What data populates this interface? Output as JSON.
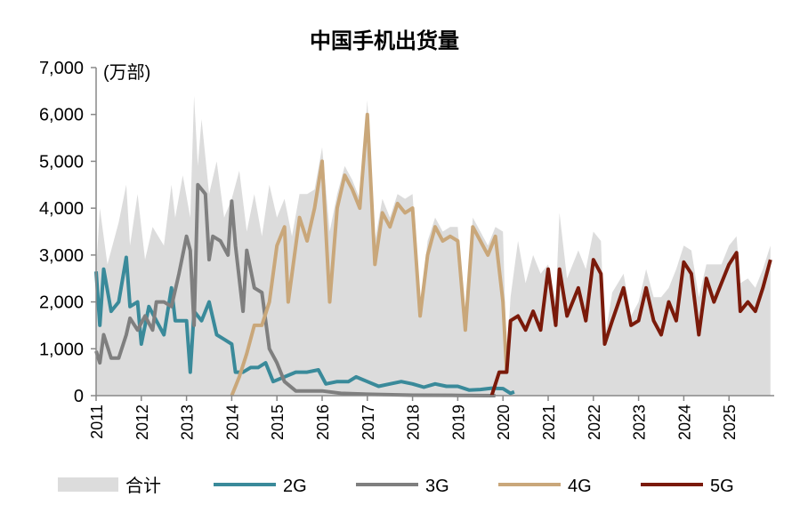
{
  "chart_data": {
    "type": "line",
    "title": "中国手机出货量",
    "unit_label": "(万部)",
    "ylim": [
      0,
      7000
    ],
    "yticks": [
      "0",
      "1,000",
      "2,000",
      "3,000",
      "4,000",
      "5,000",
      "6,000",
      "7,000"
    ],
    "xticks": [
      "2011",
      "2012",
      "2013",
      "2014",
      "2015",
      "2016",
      "2017",
      "2018",
      "2019",
      "2020",
      "2021",
      "2022",
      "2023",
      "2024",
      "2025"
    ],
    "xlim": [
      "2011-01",
      "2026-01"
    ],
    "grid": false,
    "legend_placement": "bottom",
    "series": [
      {
        "name": "合计",
        "style": "area",
        "color": "#dcdcdc",
        "points": [
          [
            "2011-01",
            2650
          ],
          [
            "2011-02",
            4000
          ],
          [
            "2011-04",
            2800
          ],
          [
            "2011-07",
            3700
          ],
          [
            "2011-09",
            4500
          ],
          [
            "2011-10",
            3200
          ],
          [
            "2011-12",
            4300
          ],
          [
            "2012-02",
            2900
          ],
          [
            "2012-04",
            3600
          ],
          [
            "2012-07",
            3200
          ],
          [
            "2012-09",
            4500
          ],
          [
            "2012-10",
            3800
          ],
          [
            "2012-12",
            4700
          ],
          [
            "2013-02",
            3800
          ],
          [
            "2013-03",
            6400
          ],
          [
            "2013-04",
            4900
          ],
          [
            "2013-05",
            5900
          ],
          [
            "2013-07",
            4300
          ],
          [
            "2013-09",
            5000
          ],
          [
            "2013-11",
            3800
          ],
          [
            "2014-01",
            4200
          ],
          [
            "2014-03",
            4800
          ],
          [
            "2014-05",
            3500
          ],
          [
            "2014-07",
            4300
          ],
          [
            "2014-09",
            3400
          ],
          [
            "2014-11",
            4500
          ],
          [
            "2015-01",
            3800
          ],
          [
            "2015-03",
            4200
          ],
          [
            "2015-05",
            3400
          ],
          [
            "2015-07",
            4300
          ],
          [
            "2015-09",
            4300
          ],
          [
            "2015-11",
            4400
          ],
          [
            "2016-01",
            5300
          ],
          [
            "2016-03",
            3500
          ],
          [
            "2016-05",
            4300
          ],
          [
            "2016-07",
            4900
          ],
          [
            "2016-09",
            4600
          ],
          [
            "2016-11",
            4200
          ],
          [
            "2017-01",
            6300
          ],
          [
            "2017-03",
            3300
          ],
          [
            "2017-05",
            4200
          ],
          [
            "2017-07",
            3800
          ],
          [
            "2017-09",
            4300
          ],
          [
            "2017-11",
            4200
          ],
          [
            "2018-01",
            4300
          ],
          [
            "2018-03",
            1900
          ],
          [
            "2018-05",
            3300
          ],
          [
            "2018-07",
            3800
          ],
          [
            "2018-09",
            3500
          ],
          [
            "2018-11",
            3600
          ],
          [
            "2019-01",
            3600
          ],
          [
            "2019-03",
            1500
          ],
          [
            "2019-05",
            3800
          ],
          [
            "2019-07",
            3500
          ],
          [
            "2019-09",
            3200
          ],
          [
            "2019-11",
            3600
          ],
          [
            "2020-01",
            3500
          ],
          [
            "2020-02",
            700
          ],
          [
            "2020-03",
            2100
          ],
          [
            "2020-05",
            3300
          ],
          [
            "2020-07",
            2400
          ],
          [
            "2020-09",
            3000
          ],
          [
            "2020-11",
            2600
          ],
          [
            "2021-01",
            2800
          ],
          [
            "2021-03",
            2000
          ],
          [
            "2021-04",
            3900
          ],
          [
            "2021-06",
            2500
          ],
          [
            "2021-09",
            3100
          ],
          [
            "2021-11",
            2700
          ],
          [
            "2022-01",
            3500
          ],
          [
            "2022-03",
            3300
          ],
          [
            "2022-04",
            1200
          ],
          [
            "2022-06",
            2200
          ],
          [
            "2022-09",
            2600
          ],
          [
            "2022-11",
            1700
          ],
          [
            "2023-01",
            2000
          ],
          [
            "2023-03",
            2700
          ],
          [
            "2023-05",
            2100
          ],
          [
            "2023-07",
            2100
          ],
          [
            "2023-09",
            2300
          ],
          [
            "2023-11",
            2700
          ],
          [
            "2024-01",
            3200
          ],
          [
            "2024-03",
            3100
          ],
          [
            "2024-05",
            2100
          ],
          [
            "2024-07",
            2800
          ],
          [
            "2024-09",
            2800
          ],
          [
            "2024-11",
            2800
          ],
          [
            "2025-01",
            3200
          ],
          [
            "2025-03",
            3400
          ],
          [
            "2025-04",
            2400
          ],
          [
            "2025-06",
            2500
          ],
          [
            "2025-08",
            2300
          ],
          [
            "2025-10",
            2700
          ],
          [
            "2025-12",
            3200
          ]
        ]
      },
      {
        "name": "2G",
        "style": "line",
        "color": "#3a8a9a",
        "points": [
          [
            "2011-01",
            2650
          ],
          [
            "2011-02",
            1500
          ],
          [
            "2011-03",
            2700
          ],
          [
            "2011-05",
            1800
          ],
          [
            "2011-07",
            2000
          ],
          [
            "2011-09",
            2950
          ],
          [
            "2011-10",
            1900
          ],
          [
            "2011-12",
            2000
          ],
          [
            "2012-01",
            1100
          ],
          [
            "2012-03",
            1900
          ],
          [
            "2012-05",
            1600
          ],
          [
            "2012-07",
            1300
          ],
          [
            "2012-09",
            2300
          ],
          [
            "2012-10",
            1600
          ],
          [
            "2013-01",
            1600
          ],
          [
            "2013-02",
            500
          ],
          [
            "2013-03",
            1800
          ],
          [
            "2013-05",
            1600
          ],
          [
            "2013-07",
            2000
          ],
          [
            "2013-09",
            1300
          ],
          [
            "2013-11",
            1200
          ],
          [
            "2014-01",
            1100
          ],
          [
            "2014-02",
            500
          ],
          [
            "2014-04",
            500
          ],
          [
            "2014-06",
            600
          ],
          [
            "2014-08",
            600
          ],
          [
            "2014-10",
            700
          ],
          [
            "2014-12",
            300
          ],
          [
            "2015-03",
            400
          ],
          [
            "2015-06",
            500
          ],
          [
            "2015-09",
            500
          ],
          [
            "2015-12",
            550
          ],
          [
            "2016-02",
            250
          ],
          [
            "2016-05",
            300
          ],
          [
            "2016-08",
            300
          ],
          [
            "2016-10",
            400
          ],
          [
            "2017-01",
            300
          ],
          [
            "2017-04",
            200
          ],
          [
            "2017-07",
            250
          ],
          [
            "2017-10",
            300
          ],
          [
            "2018-01",
            250
          ],
          [
            "2018-04",
            180
          ],
          [
            "2018-07",
            250
          ],
          [
            "2018-10",
            200
          ],
          [
            "2019-01",
            200
          ],
          [
            "2019-04",
            120
          ],
          [
            "2019-07",
            130
          ],
          [
            "2019-10",
            160
          ],
          [
            "2020-01",
            150
          ],
          [
            "2020-03",
            50
          ],
          [
            "2020-04",
            80
          ]
        ]
      },
      {
        "name": "3G",
        "style": "line",
        "color": "#7f7f7f",
        "points": [
          [
            "2011-01",
            950
          ],
          [
            "2011-02",
            700
          ],
          [
            "2011-03",
            1300
          ],
          [
            "2011-05",
            800
          ],
          [
            "2011-07",
            800
          ],
          [
            "2011-09",
            1300
          ],
          [
            "2011-10",
            1650
          ],
          [
            "2011-12",
            1400
          ],
          [
            "2012-02",
            1700
          ],
          [
            "2012-04",
            1400
          ],
          [
            "2012-05",
            2000
          ],
          [
            "2012-07",
            2000
          ],
          [
            "2012-09",
            1900
          ],
          [
            "2012-11",
            2600
          ],
          [
            "2013-01",
            3400
          ],
          [
            "2013-02",
            3100
          ],
          [
            "2013-03",
            1500
          ],
          [
            "2013-04",
            4500
          ],
          [
            "2013-06",
            4300
          ],
          [
            "2013-07",
            2900
          ],
          [
            "2013-08",
            3400
          ],
          [
            "2013-10",
            3300
          ],
          [
            "2013-12",
            3000
          ],
          [
            "2014-01",
            4150
          ],
          [
            "2014-02",
            3200
          ],
          [
            "2014-04",
            1800
          ],
          [
            "2014-05",
            3100
          ],
          [
            "2014-07",
            2300
          ],
          [
            "2014-09",
            2200
          ],
          [
            "2014-11",
            1000
          ],
          [
            "2015-01",
            700
          ],
          [
            "2015-03",
            300
          ],
          [
            "2015-06",
            100
          ],
          [
            "2015-09",
            100
          ],
          [
            "2016-01",
            100
          ],
          [
            "2016-06",
            50
          ],
          [
            "2017-01",
            30
          ],
          [
            "2018-01",
            10
          ],
          [
            "2019-01",
            5
          ],
          [
            "2019-11",
            0
          ]
        ]
      },
      {
        "name": "4G",
        "style": "line",
        "color": "#c9a77a",
        "points": [
          [
            "2014-01",
            0
          ],
          [
            "2014-03",
            400
          ],
          [
            "2014-05",
            900
          ],
          [
            "2014-07",
            1500
          ],
          [
            "2014-09",
            1500
          ],
          [
            "2014-11",
            2000
          ],
          [
            "2015-01",
            3200
          ],
          [
            "2015-03",
            3600
          ],
          [
            "2015-04",
            2000
          ],
          [
            "2015-07",
            3800
          ],
          [
            "2015-09",
            3300
          ],
          [
            "2015-11",
            4000
          ],
          [
            "2016-01",
            5000
          ],
          [
            "2016-03",
            2000
          ],
          [
            "2016-05",
            4000
          ],
          [
            "2016-07",
            4700
          ],
          [
            "2016-09",
            4400
          ],
          [
            "2016-11",
            4000
          ],
          [
            "2017-01",
            6000
          ],
          [
            "2017-03",
            2800
          ],
          [
            "2017-05",
            3900
          ],
          [
            "2017-07",
            3600
          ],
          [
            "2017-09",
            4100
          ],
          [
            "2017-11",
            3900
          ],
          [
            "2018-01",
            4000
          ],
          [
            "2018-03",
            1700
          ],
          [
            "2018-05",
            3000
          ],
          [
            "2018-07",
            3600
          ],
          [
            "2018-09",
            3300
          ],
          [
            "2018-11",
            3400
          ],
          [
            "2019-01",
            3300
          ],
          [
            "2019-03",
            1400
          ],
          [
            "2019-05",
            3600
          ],
          [
            "2019-07",
            3300
          ],
          [
            "2019-09",
            3000
          ],
          [
            "2019-11",
            3400
          ],
          [
            "2020-01",
            2000
          ],
          [
            "2020-02",
            500
          ]
        ]
      },
      {
        "name": "5G",
        "style": "line",
        "color": "#7a1a0a",
        "points": [
          [
            "2019-10",
            0
          ],
          [
            "2019-12",
            500
          ],
          [
            "2020-02",
            500
          ],
          [
            "2020-03",
            1600
          ],
          [
            "2020-05",
            1700
          ],
          [
            "2020-07",
            1400
          ],
          [
            "2020-09",
            1800
          ],
          [
            "2020-11",
            1400
          ],
          [
            "2021-01",
            2700
          ],
          [
            "2021-03",
            1500
          ],
          [
            "2021-04",
            2700
          ],
          [
            "2021-06",
            1700
          ],
          [
            "2021-09",
            2300
          ],
          [
            "2021-11",
            1600
          ],
          [
            "2022-01",
            2900
          ],
          [
            "2022-03",
            2600
          ],
          [
            "2022-04",
            1100
          ],
          [
            "2022-06",
            1600
          ],
          [
            "2022-09",
            2300
          ],
          [
            "2022-11",
            1500
          ],
          [
            "2023-01",
            1600
          ],
          [
            "2023-03",
            2300
          ],
          [
            "2023-05",
            1600
          ],
          [
            "2023-07",
            1300
          ],
          [
            "2023-09",
            2000
          ],
          [
            "2023-11",
            1600
          ],
          [
            "2024-01",
            2850
          ],
          [
            "2024-03",
            2600
          ],
          [
            "2024-05",
            1300
          ],
          [
            "2024-07",
            2500
          ],
          [
            "2024-09",
            2000
          ],
          [
            "2024-11",
            2400
          ],
          [
            "2025-01",
            2800
          ],
          [
            "2025-03",
            3050
          ],
          [
            "2025-04",
            1800
          ],
          [
            "2025-06",
            2000
          ],
          [
            "2025-08",
            1800
          ],
          [
            "2025-10",
            2300
          ],
          [
            "2025-12",
            2900
          ]
        ]
      }
    ]
  }
}
